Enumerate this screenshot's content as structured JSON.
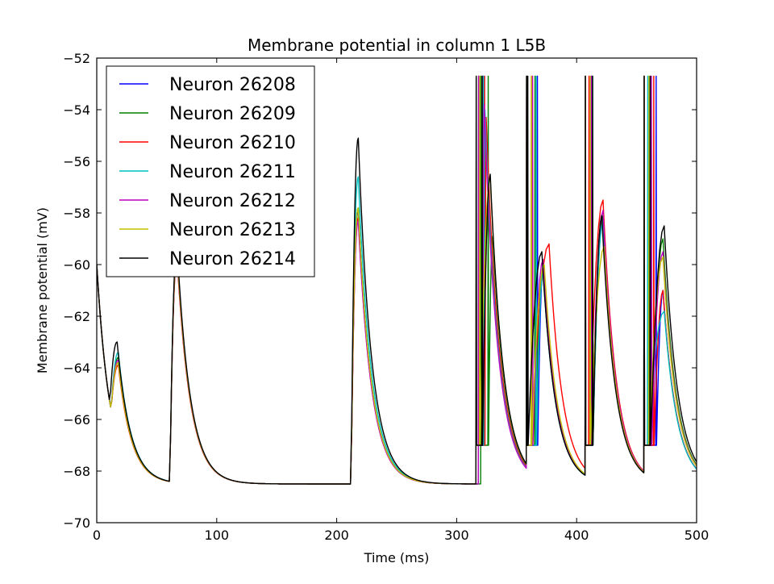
{
  "chart_data": {
    "type": "line",
    "title": "Membrane potential in column 1 L5B",
    "xlabel": "Time (ms)",
    "ylabel": "Membrane potential (mV)",
    "xlim": [
      0,
      500
    ],
    "ylim": [
      -70,
      -52
    ],
    "xticks": [
      0,
      100,
      200,
      300,
      400,
      500
    ],
    "yticks": [
      -70,
      -68,
      -66,
      -64,
      -62,
      -60,
      -58,
      -56,
      -54,
      -52
    ],
    "grid": false,
    "legend_position": "top-left",
    "series": [
      {
        "name": "Neuron 26208",
        "color": "#0000ff",
        "events": [
          {
            "t": 18,
            "peak": -63.8
          },
          {
            "t": 67,
            "peak": -59.6
          },
          {
            "t": 218,
            "peak": -57.9
          },
          {
            "t": 322,
            "peak": -54.2,
            "spike": [
              318,
              322,
              329
            ],
            "fall": -65.0
          },
          {
            "t": 372,
            "peak": -60.2,
            "spike": [
              358,
              367,
              374
            ]
          },
          {
            "t": 422,
            "peak": -58.2,
            "spike": [
              407,
              412,
              413
            ]
          },
          {
            "t": 472,
            "peak": -61.0,
            "spike": [
              456,
              466,
              468
            ]
          }
        ]
      },
      {
        "name": "Neuron 26209",
        "color": "#008000",
        "events": [
          {
            "t": 18,
            "peak": -63.6
          },
          {
            "t": 67,
            "peak": -59.5
          },
          {
            "t": 218,
            "peak": -57.8
          },
          {
            "t": 330,
            "peak": -58.9,
            "spike": [
              320,
              326,
              331
            ]
          },
          {
            "t": 372,
            "peak": -60.2,
            "spike": [
              358,
              365,
              368
            ]
          },
          {
            "t": 422,
            "peak": -58.1,
            "spike": [
              407,
              413,
              414
            ]
          },
          {
            "t": 472,
            "peak": -59.0,
            "spike": [
              456,
              462,
              464
            ]
          }
        ]
      },
      {
        "name": "Neuron 26210",
        "color": "#ff0000",
        "events": [
          {
            "t": 18,
            "peak": -63.9
          },
          {
            "t": 67,
            "peak": -59.8
          },
          {
            "t": 218,
            "peak": -58.2
          },
          {
            "t": 322,
            "peak": -54.3,
            "spike": [
              318,
              323,
              329
            ],
            "fall": -65.0
          },
          {
            "t": 377,
            "peak": -59.2,
            "spike": [
              358,
              362,
              378
            ]
          },
          {
            "t": 422,
            "peak": -57.5,
            "spike": [
              407,
              410,
              415
            ]
          },
          {
            "t": 472,
            "peak": -61.0,
            "spike": [
              456,
              464,
              469
            ]
          }
        ]
      },
      {
        "name": "Neuron 26211",
        "color": "#00bfbf",
        "events": [
          {
            "t": 18,
            "peak": -63.4
          },
          {
            "t": 67,
            "peak": -59.5
          },
          {
            "t": 218,
            "peak": -56.6
          },
          {
            "t": 322,
            "peak": -54.0,
            "spike": [
              318,
              322,
              329
            ],
            "fall": -65.0
          },
          {
            "t": 372,
            "peak": -60.3,
            "spike": [
              358,
              366,
              374
            ]
          },
          {
            "t": 422,
            "peak": -58.3,
            "spike": [
              407,
              413,
              414
            ]
          },
          {
            "t": 473,
            "peak": -61.8,
            "spike": [
              456,
              459,
              468
            ]
          }
        ]
      },
      {
        "name": "Neuron 26212",
        "color": "#bf00bf",
        "events": [
          {
            "t": 18,
            "peak": -63.7
          },
          {
            "t": 67,
            "peak": -59.7
          },
          {
            "t": 218,
            "peak": -58.3
          },
          {
            "t": 323,
            "peak": -53.8,
            "spike": [
              318,
              321,
              329
            ],
            "fall": -65.0
          },
          {
            "t": 372,
            "peak": -59.8,
            "spike": [
              358,
              363,
              370
            ]
          },
          {
            "t": 422,
            "peak": -57.9,
            "spike": [
              407,
              412,
              414
            ]
          },
          {
            "t": 472,
            "peak": -59.5,
            "spike": [
              456,
              462,
              466
            ]
          }
        ]
      },
      {
        "name": "Neuron 26213",
        "color": "#bfbf00",
        "events": [
          {
            "t": 18,
            "peak": -63.8
          },
          {
            "t": 67,
            "peak": -59.6
          },
          {
            "t": 218,
            "peak": -57.8
          },
          {
            "t": 328,
            "peak": -56.6,
            "spike": [
              316,
              319,
              327
            ]
          },
          {
            "t": 373,
            "peak": -60.0,
            "spike": [
              358,
              362,
              372
            ]
          },
          {
            "t": 423,
            "peak": -59.3,
            "spike": [
              407,
              411,
              415
            ]
          },
          {
            "t": 472,
            "peak": -59.7,
            "spike": [
              456,
              460,
              466
            ]
          }
        ]
      },
      {
        "name": "Neuron 26214",
        "color": "#000000",
        "events": [
          {
            "t": 17,
            "peak": -63.0
          },
          {
            "t": 67,
            "peak": -59.3
          },
          {
            "t": 218,
            "peak": -55.1
          },
          {
            "t": 328,
            "peak": -56.5,
            "spike": [
              316,
              321,
              327
            ]
          },
          {
            "t": 371,
            "peak": -59.5,
            "spike": [
              358,
              359,
              370
            ]
          },
          {
            "t": 421,
            "peak": -58.1,
            "spike": [
              407,
              413,
              414
            ]
          },
          {
            "t": 473,
            "peak": -58.5,
            "spike": [
              456,
              461,
              467
            ]
          }
        ]
      }
    ]
  }
}
